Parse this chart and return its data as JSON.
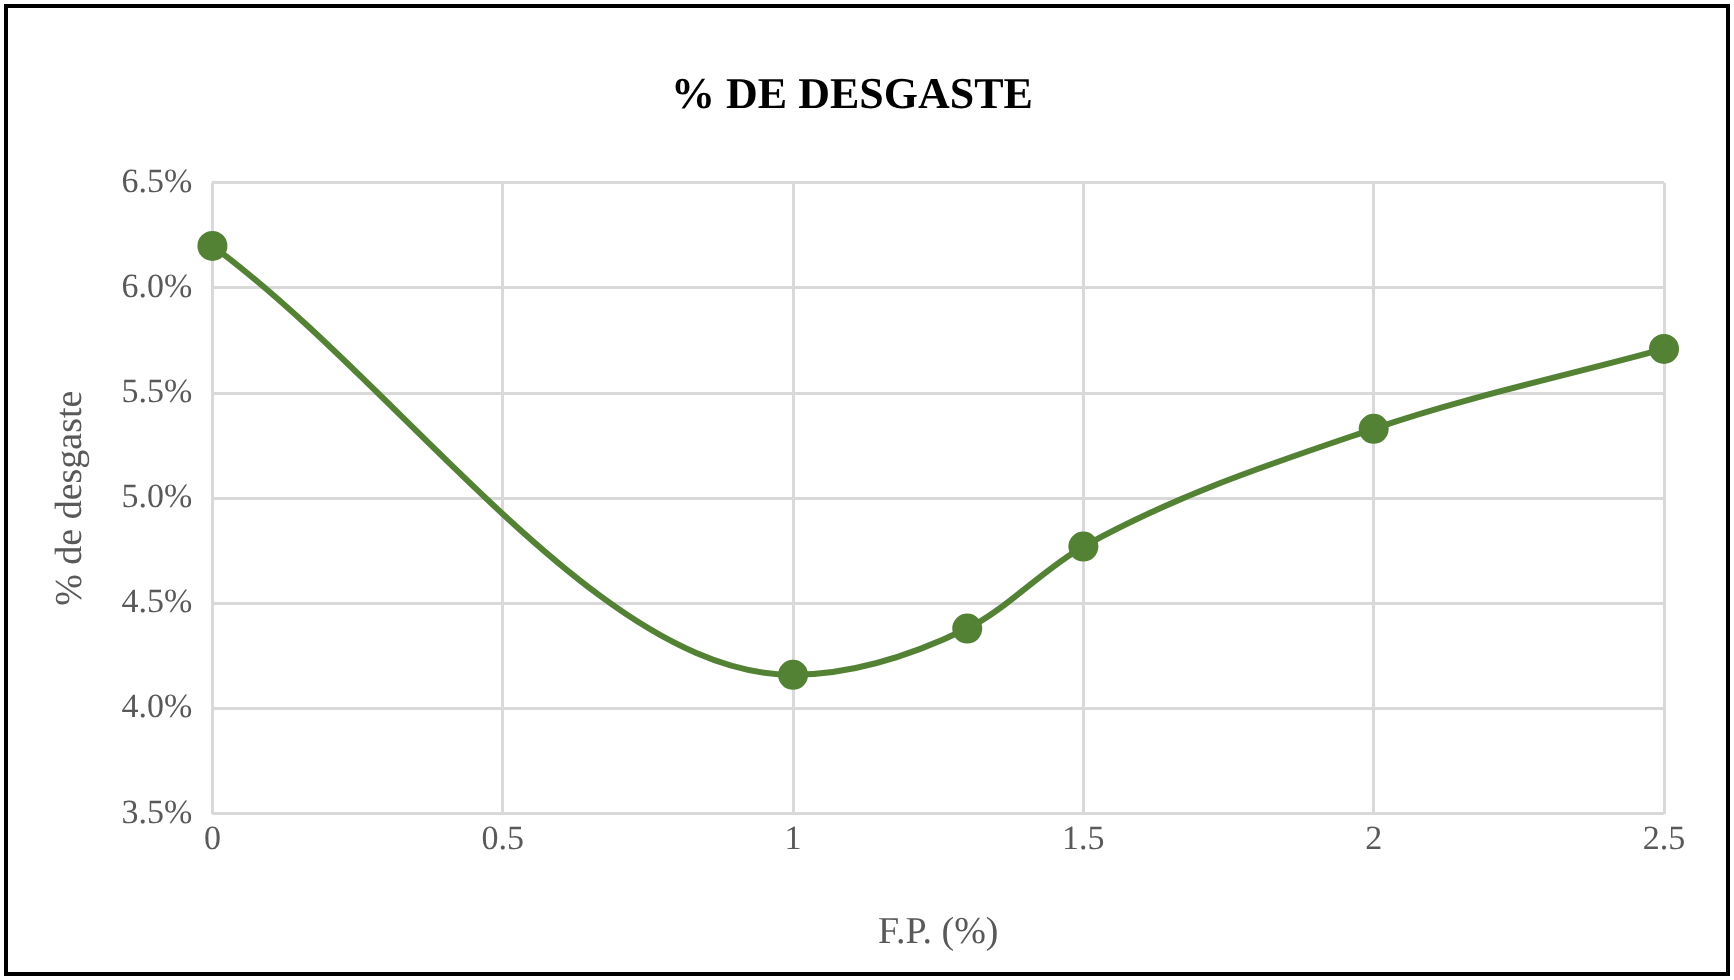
{
  "chart_data": {
    "type": "line",
    "title": "% DE DESGASTE",
    "xlabel": "F.P. (%)",
    "ylabel": "% de desgaste",
    "x": [
      0,
      1,
      1.3,
      1.5,
      2,
      2.5
    ],
    "series": [
      {
        "color": "#548235",
        "values": [
          6.2,
          4.16,
          4.38,
          4.77,
          5.33,
          5.71
        ]
      }
    ],
    "xlim": [
      0,
      2.5
    ],
    "xticks": [
      0,
      0.5,
      1,
      1.5,
      2,
      2.5
    ],
    "ylim": [
      3.5,
      6.5
    ],
    "yticks": [
      {
        "value": 3.5,
        "label": "3.5%"
      },
      {
        "value": 4,
        "label": "4.0%"
      },
      {
        "value": 4.5,
        "label": "4.5%"
      },
      {
        "value": 5,
        "label": "5.0%"
      },
      {
        "value": 5.5,
        "label": "5.5%"
      },
      {
        "value": 6,
        "label": "6.0%"
      },
      {
        "value": 6.5,
        "label": "6.5%"
      }
    ],
    "grid": true,
    "marker": "circle",
    "line_style": "solid",
    "legend": false
  }
}
